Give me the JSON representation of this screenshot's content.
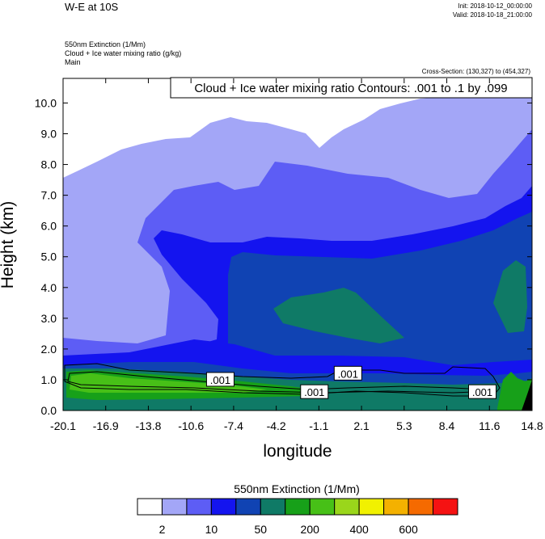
{
  "header": {
    "title": "W-E at 10S",
    "init": "Init: 2018-10-12_00:00:00",
    "valid": "Valid: 2018-10-18_21:00:00",
    "field1": "550nm Extinction   (1/Mm)",
    "field2": "Cloud + Ice water mixing ratio   (g/kg)",
    "field3": "Main",
    "cross_section": "Cross-Section: (130,327) to (454,327)"
  },
  "chart_data": {
    "type": "heatmap",
    "title": "Cloud + Ice water mixing ratio Contours: .001 to .1 by .099",
    "xlabel": "longitude",
    "ylabel": "Height (km)",
    "xlim": [
      -20.1,
      14.8
    ],
    "ylim": [
      0.0,
      10.8
    ],
    "x_ticks": [
      "-20.1",
      "-16.9",
      "-13.8",
      "-10.6",
      "-7.4",
      "-4.2",
      "-1.1",
      "2.1",
      "5.3",
      "8.4",
      "11.6",
      "14.8"
    ],
    "y_ticks": [
      "0.0",
      "1.0",
      "2.0",
      "3.0",
      "4.0",
      "5.0",
      "6.0",
      "7.0",
      "8.0",
      "9.0",
      "10.0"
    ],
    "contour_labels": [
      {
        "text": ".001",
        "x": -8.4,
        "y": 1.0
      },
      {
        "text": ".001",
        "x": 1.1,
        "y": 1.2
      },
      {
        "text": ".001",
        "x": -1.4,
        "y": 0.6
      },
      {
        "text": ".001",
        "x": 11.1,
        "y": 0.6
      }
    ],
    "colorbar": {
      "title": "550nm Extinction  (1/Mm)",
      "colors": [
        "#ffffff",
        "#a3a6f7",
        "#5d5df5",
        "#1414ef",
        "#1043b3",
        "#0f7a66",
        "#17a019",
        "#47c017",
        "#9ad61b",
        "#f1f100",
        "#f4b100",
        "#f56a00",
        "#f51212"
      ],
      "labels": [
        "2",
        "10",
        "50",
        "200",
        "400",
        "600"
      ]
    },
    "grid": false
  }
}
